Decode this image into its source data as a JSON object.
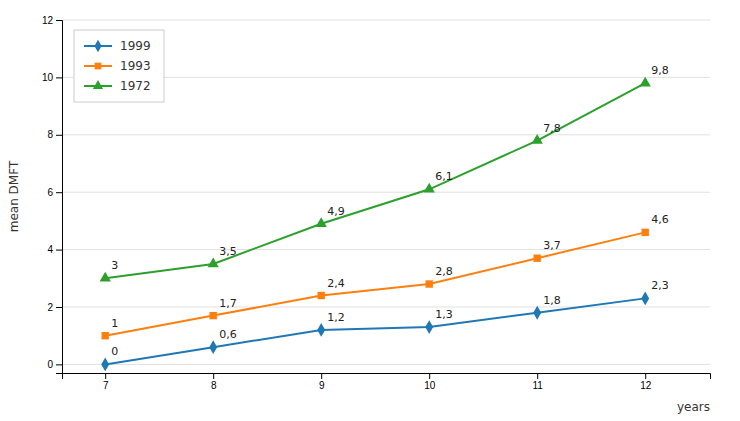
{
  "chart_data": {
    "type": "line",
    "x_label": "years",
    "y_label": "mean DMFT",
    "x": [
      7,
      8,
      9,
      10,
      11,
      12
    ],
    "series": [
      {
        "name": "1999",
        "marker": "diamond",
        "values": [
          0,
          0.6,
          1.2,
          1.3,
          1.8,
          2.3
        ],
        "value_labels": [
          "0",
          "0,6",
          "1,2",
          "1,3",
          "1,8",
          "2,3"
        ]
      },
      {
        "name": "1993",
        "marker": "square",
        "values": [
          1,
          1.7,
          2.4,
          2.8,
          3.7,
          4.6
        ],
        "value_labels": [
          "1",
          "1,7",
          "2,4",
          "2,8",
          "3,7",
          "4,6"
        ]
      },
      {
        "name": "1972",
        "marker": "triangle",
        "values": [
          3,
          3.5,
          4.9,
          6.1,
          7.8,
          9.8
        ],
        "value_labels": [
          "3",
          "3,5",
          "4,9",
          "6,1",
          "7,8",
          "9,8"
        ]
      }
    ],
    "xlim": [
      6.6,
      12.6
    ],
    "ylim": [
      -0.3,
      12
    ],
    "xticks": [
      7,
      8,
      9,
      10,
      11,
      12
    ],
    "yticks": [
      0,
      2,
      4,
      6,
      8,
      10,
      12
    ],
    "grid": true,
    "legend": "upper left",
    "data_labels": true
  }
}
